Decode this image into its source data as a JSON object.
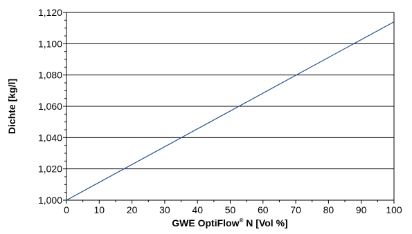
{
  "chart_data": {
    "type": "line",
    "xlabel": {
      "main": "GWE OptiFlow",
      "sup": "®",
      "rest": " N [Vol %]"
    },
    "ylabel": "Dichte [kg/l]",
    "xlim": [
      0,
      100
    ],
    "ylim": [
      1.0,
      1.12
    ],
    "x_ticks": [
      "0",
      "10",
      "20",
      "30",
      "40",
      "50",
      "60",
      "70",
      "80",
      "90",
      "100"
    ],
    "y_ticks": [
      "1,000",
      "1,020",
      "1,040",
      "1,060",
      "1,080",
      "1,100",
      "1,120"
    ],
    "grid": "horizontal",
    "series": [
      {
        "x": [
          0,
          100
        ],
        "y": [
          1.0,
          1.114
        ]
      }
    ],
    "colors": {
      "line": "#1f4e8c",
      "grid": "#000000",
      "axis": "#000000"
    }
  }
}
